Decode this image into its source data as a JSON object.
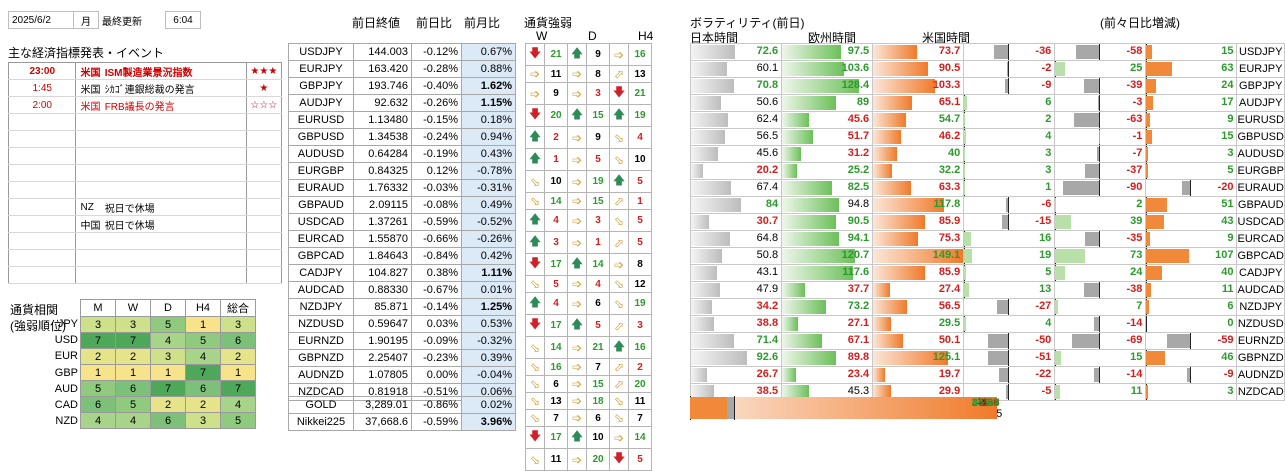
{
  "topbar": {
    "date": "2025/6/2",
    "weekday": "月",
    "updated_label": "最終更新",
    "time": "6:04"
  },
  "events": {
    "title": "主な経済指標発表・イベント",
    "rows": [
      {
        "time": "23:00",
        "country": "米国",
        "name": "ISM製造業景況指数",
        "stars": "★★★",
        "hl": true
      },
      {
        "time": "1:45",
        "country": "米国",
        "name": "ｼｶｺﾞ連銀総裁の発言",
        "stars": "★",
        "hl": false
      },
      {
        "time": "2:00",
        "country": "米国",
        "name": "FRB議長の発言",
        "stars": "☆☆☆",
        "hl": false
      },
      {
        "time": "",
        "country": "",
        "name": "",
        "stars": "",
        "hl": false
      },
      {
        "time": "",
        "country": "",
        "name": "",
        "stars": "",
        "hl": false
      },
      {
        "time": "",
        "country": "",
        "name": "",
        "stars": "",
        "hl": false
      },
      {
        "time": "",
        "country": "",
        "name": "",
        "stars": "",
        "hl": false
      },
      {
        "time": "",
        "country": "",
        "name": "",
        "stars": "",
        "hl": false
      },
      {
        "time": "",
        "country": "NZ",
        "name": "祝日で休場",
        "stars": "",
        "hl": false
      },
      {
        "time": "",
        "country": "中国",
        "name": "祝日で休場",
        "stars": "",
        "hl": false
      },
      {
        "time": "",
        "country": "",
        "name": "",
        "stars": "",
        "hl": false
      },
      {
        "time": "",
        "country": "",
        "name": "",
        "stars": "",
        "hl": false
      },
      {
        "time": "",
        "country": "",
        "name": "",
        "stars": "",
        "hl": false
      }
    ]
  },
  "corr": {
    "title1": "通貨相関",
    "title2": "(強弱順位)",
    "headers": [
      "M",
      "W",
      "D",
      "H4",
      "総合"
    ],
    "rows": [
      {
        "cur": "JPY",
        "vals": [
          3,
          3,
          5,
          1,
          3
        ]
      },
      {
        "cur": "USD",
        "vals": [
          7,
          7,
          4,
          5,
          6
        ]
      },
      {
        "cur": "EUR",
        "vals": [
          2,
          2,
          3,
          4,
          2
        ]
      },
      {
        "cur": "GBP",
        "vals": [
          1,
          1,
          1,
          7,
          1
        ]
      },
      {
        "cur": "AUD",
        "vals": [
          5,
          6,
          7,
          6,
          7
        ]
      },
      {
        "cur": "CAD",
        "vals": [
          6,
          5,
          2,
          2,
          4
        ]
      },
      {
        "cur": "NZD",
        "vals": [
          4,
          4,
          6,
          3,
          5
        ]
      }
    ]
  },
  "pairs": {
    "headers": {
      "prev": "前日終値",
      "dchg": "前日比",
      "mchg": "前月比"
    },
    "rows": [
      {
        "name": "USDJPY",
        "prev": "144.003",
        "d": "-0.12%",
        "m": "0.67%",
        "mb": false
      },
      {
        "name": "EURJPY",
        "prev": "163.420",
        "d": "-0.28%",
        "m": "0.88%",
        "mb": false
      },
      {
        "name": "GBPJPY",
        "prev": "193.746",
        "d": "-0.40%",
        "m": "1.62%",
        "mb": true
      },
      {
        "name": "AUDJPY",
        "prev": "92.632",
        "d": "-0.26%",
        "m": "1.15%",
        "mb": true
      },
      {
        "name": "EURUSD",
        "prev": "1.13480",
        "d": "-0.15%",
        "m": "0.18%",
        "mb": false
      },
      {
        "name": "GBPUSD",
        "prev": "1.34538",
        "d": "-0.24%",
        "m": "0.94%",
        "mb": false
      },
      {
        "name": "AUDUSD",
        "prev": "0.64284",
        "d": "-0.19%",
        "m": "0.43%",
        "mb": false
      },
      {
        "name": "EURGBP",
        "prev": "0.84325",
        "d": "0.12%",
        "m": "-0.78%",
        "mb": false
      },
      {
        "name": "EURAUD",
        "prev": "1.76332",
        "d": "-0.03%",
        "m": "-0.31%",
        "mb": false
      },
      {
        "name": "GBPAUD",
        "prev": "2.09115",
        "d": "-0.08%",
        "m": "0.49%",
        "mb": false
      },
      {
        "name": "USDCAD",
        "prev": "1.37261",
        "d": "-0.59%",
        "m": "-0.52%",
        "mb": false
      },
      {
        "name": "EURCAD",
        "prev": "1.55870",
        "d": "-0.66%",
        "m": "-0.26%",
        "mb": false
      },
      {
        "name": "GBPCAD",
        "prev": "1.84643",
        "d": "-0.84%",
        "m": "0.42%",
        "mb": false
      },
      {
        "name": "CADJPY",
        "prev": "104.827",
        "d": "0.38%",
        "m": "1.11%",
        "mb": true
      },
      {
        "name": "AUDCAD",
        "prev": "0.88330",
        "d": "-0.67%",
        "m": "0.01%",
        "mb": false
      },
      {
        "name": "NZDJPY",
        "prev": "85.871",
        "d": "-0.14%",
        "m": "1.25%",
        "mb": true
      },
      {
        "name": "NZDUSD",
        "prev": "0.59647",
        "d": "0.03%",
        "m": "0.53%",
        "mb": false
      },
      {
        "name": "EURNZD",
        "prev": "1.90195",
        "d": "-0.09%",
        "m": "-0.32%",
        "mb": false
      },
      {
        "name": "GBPNZD",
        "prev": "2.25407",
        "d": "-0.23%",
        "m": "0.39%",
        "mb": false
      },
      {
        "name": "AUDNZD",
        "prev": "1.07805",
        "d": "0.00%",
        "m": "-0.04%",
        "mb": false
      },
      {
        "name": "NZDCAD",
        "prev": "0.81918",
        "d": "-0.51%",
        "m": "0.06%",
        "mb": false
      }
    ],
    "extra": [
      {
        "name": "GOLD",
        "prev": "3,289.01",
        "d": "-0.86%",
        "m": "0.02%",
        "mb": false
      },
      {
        "name": "Nikkei225",
        "prev": "37,668.6",
        "d": "-0.59%",
        "m": "3.96%",
        "mb": true
      }
    ]
  },
  "strength": {
    "title": "通貨強弱",
    "headers": [
      "W",
      "D",
      "H4"
    ],
    "rows": [
      {
        "a": [
          "dn",
          "up",
          "rt",
          "ru",
          "up"
        ],
        "n": [
          "21",
          "9",
          "16"
        ]
      },
      {
        "a": [
          "rt",
          "rt",
          "ru",
          "ru",
          "up"
        ],
        "n": [
          "11",
          "8",
          "13"
        ]
      },
      {
        "a": [
          "rt",
          "rt",
          "dn",
          "ru",
          "up"
        ],
        "n": [
          "9",
          "3",
          "21"
        ]
      },
      {
        "a": [
          "dn",
          "up",
          "up",
          "up",
          "up"
        ],
        "n": [
          "20",
          "15",
          "19"
        ]
      },
      {
        "a": [
          "up",
          "rt",
          "rd",
          "rd",
          "dn"
        ],
        "n": [
          "2",
          "9",
          "4"
        ]
      },
      {
        "a": [
          "up",
          "rt",
          "rd",
          "rd",
          "rd"
        ],
        "n": [
          "1",
          "5",
          "10"
        ]
      },
      {
        "a": [
          "rd",
          "rt",
          "up",
          "rd",
          "dn"
        ],
        "n": [
          "10",
          "19",
          "5"
        ]
      },
      {
        "a": [
          "rd",
          "rt",
          "ru",
          "up",
          "up"
        ],
        "n": [
          "14",
          "15",
          "1"
        ]
      },
      {
        "a": [
          "up",
          "rt",
          "rd",
          "rd",
          "rd"
        ],
        "n": [
          "4",
          "3",
          "5"
        ]
      },
      {
        "a": [
          "up",
          "rt",
          "ru",
          "rd",
          "rd"
        ],
        "n": [
          "3",
          "1",
          "5"
        ]
      },
      {
        "a": [
          "dn",
          "up",
          "rt",
          "up",
          "up"
        ],
        "n": [
          "17",
          "14",
          "8"
        ]
      },
      {
        "a": [
          "rd",
          "rt",
          "rd",
          "rd",
          "rd"
        ],
        "n": [
          "5",
          "4",
          "12"
        ]
      },
      {
        "a": [
          "up",
          "rt",
          "rd",
          "ru",
          "up"
        ],
        "n": [
          "4",
          "6",
          "19"
        ]
      },
      {
        "a": [
          "dn",
          "up",
          "ru",
          "dn",
          "rd"
        ],
        "n": [
          "17",
          "5",
          "3"
        ]
      },
      {
        "a": [
          "rd",
          "rt",
          "up",
          "up",
          "up"
        ],
        "n": [
          "14",
          "21",
          "16"
        ]
      },
      {
        "a": [
          "rd",
          "rt",
          "ru",
          "rd",
          "rd"
        ],
        "n": [
          "16",
          "7",
          "2"
        ]
      },
      {
        "a": [
          "rd",
          "rt",
          "ru",
          "up",
          "up"
        ],
        "n": [
          "6",
          "15",
          "20"
        ]
      },
      {
        "a": [
          "rd",
          "rt",
          "rd",
          "rd",
          "dn"
        ],
        "n": [
          "13",
          "18",
          "11"
        ]
      },
      {
        "a": [
          "rd",
          "rt",
          "rd",
          "rd",
          "rd"
        ],
        "n": [
          "7",
          "6",
          "7"
        ]
      },
      {
        "a": [
          "dn",
          "up",
          "rt",
          "rd",
          "rd"
        ],
        "n": [
          "17",
          "10",
          "14"
        ]
      },
      {
        "a": [
          "rd",
          "rt",
          "dn",
          "up",
          "ru"
        ],
        "n": [
          "11",
          "20",
          "5"
        ]
      }
    ]
  },
  "volatility": {
    "title": "ボラティリティ(前日)",
    "h_jp": "日本時間",
    "h_eu": "欧州時間",
    "h_us": "米国時間",
    "h_chg": "(前々日比増減)",
    "rows": [
      {
        "jp": 72.6,
        "eu": 97.5,
        "us": 73.7,
        "c1": "-36",
        "c2": "-58",
        "c3": "15"
      },
      {
        "jp": 60.1,
        "eu": 103.6,
        "us": 90.5,
        "c1": "-2",
        "c2": "25",
        "c3": "63"
      },
      {
        "jp": 70.8,
        "eu": 128.4,
        "us": 103.3,
        "c1": "-9",
        "c2": "-39",
        "c3": "24"
      },
      {
        "jp": 50.6,
        "eu": 89.0,
        "us": 65.1,
        "c1": "6",
        "c2": "-3",
        "c3": "17"
      },
      {
        "jp": 62.4,
        "eu": 45.6,
        "us": 54.7,
        "c1": "2",
        "c2": "-63",
        "c3": "9"
      },
      {
        "jp": 56.5,
        "eu": 51.7,
        "us": 46.2,
        "c1": "4",
        "c2": "-1",
        "c3": "15"
      },
      {
        "jp": 45.6,
        "eu": 31.2,
        "us": 40.0,
        "c1": "3",
        "c2": "-7",
        "c3": "3"
      },
      {
        "jp": 20.2,
        "eu": 25.2,
        "us": 32.2,
        "c1": "3",
        "c2": "-37",
        "c3": "5"
      },
      {
        "jp": 67.4,
        "eu": 82.5,
        "us": 63.3,
        "c1": "1",
        "c2": "-90",
        "c3": "-20"
      },
      {
        "jp": 84.0,
        "eu": 94.8,
        "us": 117.8,
        "c1": "-6",
        "c2": "2",
        "c3": "51"
      },
      {
        "jp": 30.7,
        "eu": 90.5,
        "us": 85.9,
        "c1": "-15",
        "c2": "39",
        "c3": "43"
      },
      {
        "jp": 64.8,
        "eu": 94.1,
        "us": 75.3,
        "c1": "16",
        "c2": "-35",
        "c3": "9"
      },
      {
        "jp": 50.8,
        "eu": 120.7,
        "us": 149.1,
        "c1": "19",
        "c2": "73",
        "c3": "107"
      },
      {
        "jp": 43.1,
        "eu": 117.6,
        "us": 85.9,
        "c1": "5",
        "c2": "24",
        "c3": "40"
      },
      {
        "jp": 47.9,
        "eu": 37.7,
        "us": 27.4,
        "c1": "13",
        "c2": "-38",
        "c3": "11"
      },
      {
        "jp": 34.2,
        "eu": 73.2,
        "us": 56.5,
        "c1": "-27",
        "c2": "7",
        "c3": "6"
      },
      {
        "jp": 38.8,
        "eu": 27.1,
        "us": 29.5,
        "c1": "4",
        "c2": "-14",
        "c3": "0"
      },
      {
        "jp": 71.4,
        "eu": 67.1,
        "us": 50.1,
        "c1": "-50",
        "c2": "-69",
        "c3": "-59"
      },
      {
        "jp": 92.6,
        "eu": 89.8,
        "us": 125.1,
        "c1": "-51",
        "c2": "15",
        "c3": "46"
      },
      {
        "jp": 26.7,
        "eu": 23.4,
        "us": 19.7,
        "c1": "-22",
        "c2": "-14",
        "c3": "-9"
      },
      {
        "jp": 38.5,
        "eu": 45.3,
        "us": 29.9,
        "c1": "-5",
        "c2": "11",
        "c3": "3"
      }
    ],
    "extra": [
      {
        "jp": 358.7,
        "eu": 370.3,
        "us": 370.3,
        "c1": "-63",
        "c2": "-139",
        "c3": "104"
      },
      {
        "jp": 362.5,
        "eu": 435.0,
        "us": 442.5,
        "c1": "23",
        "c2": "-230",
        "c3": "93"
      }
    ]
  },
  "colors": {
    "up": "#2e8b57",
    "down": "#d0202a",
    "neutral": "#d59a2a",
    "blue_col": "#dce9f7"
  }
}
